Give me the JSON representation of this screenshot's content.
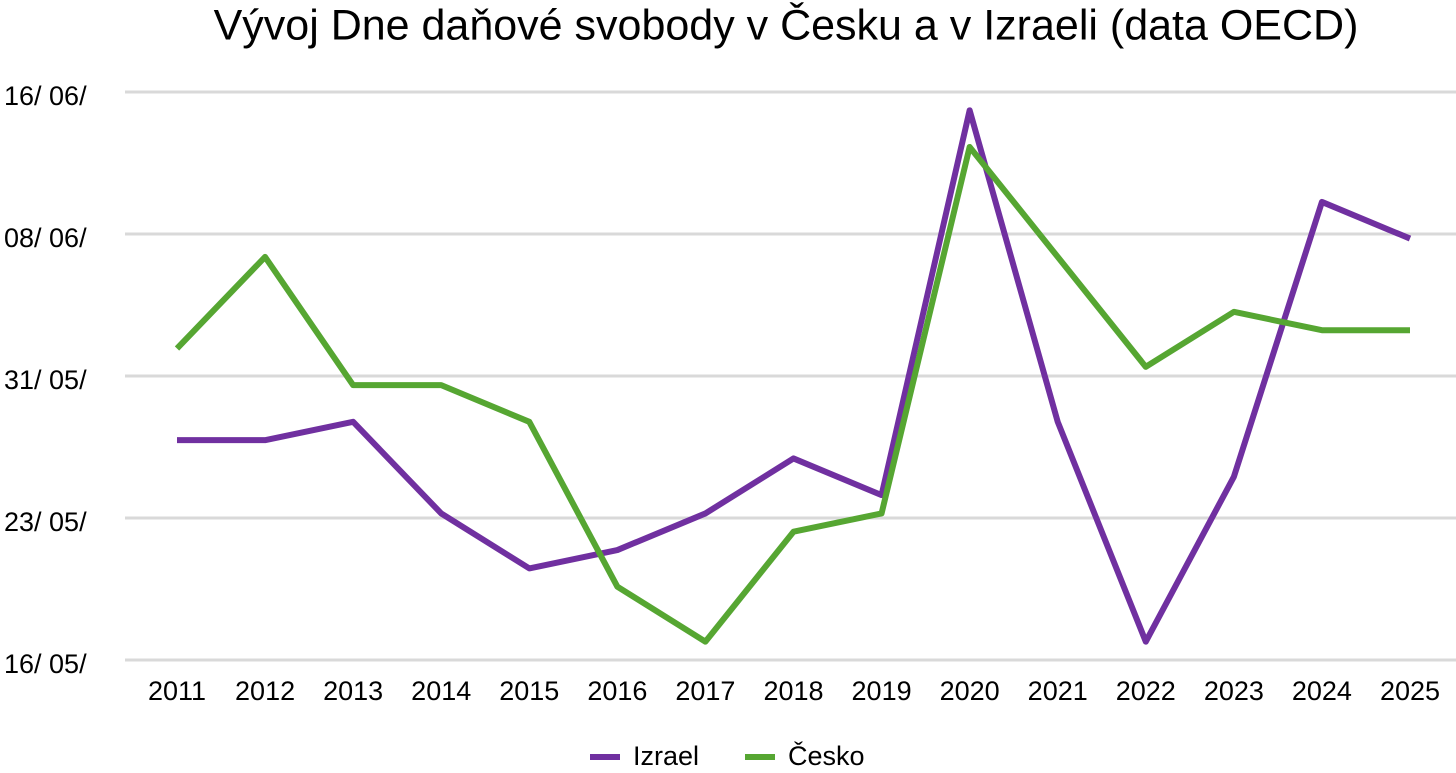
{
  "chart_data": {
    "type": "line",
    "title": "Vývoj Dne daňové svobody v Česku a v Izraeli (data OECD)",
    "categories": [
      "2011",
      "2012",
      "2013",
      "2014",
      "2015",
      "2016",
      "2017",
      "2018",
      "2019",
      "2020",
      "2021",
      "2022",
      "2023",
      "2024",
      "2025"
    ],
    "series": [
      {
        "name": "Izrael",
        "color": "#7030a0",
        "values": [
          28,
          28,
          29,
          24,
          21,
          22,
          24,
          27,
          25,
          46,
          29,
          17,
          26,
          41,
          39
        ]
      },
      {
        "name": "Česko",
        "color": "#56a632",
        "values": [
          33,
          38,
          31,
          31,
          29,
          20,
          17,
          23,
          24,
          44,
          38,
          32,
          35,
          34,
          34
        ]
      }
    ],
    "ylim": [
      16,
      47
    ],
    "yticks": [
      {
        "value": 16,
        "label": "16/ 05/"
      },
      {
        "value": 23.75,
        "label": "23/ 05/"
      },
      {
        "value": 31.5,
        "label": "31/ 05/"
      },
      {
        "value": 39.25,
        "label": "08/ 06/"
      },
      {
        "value": 47,
        "label": "16/ 06/"
      }
    ],
    "grid": true,
    "legend": "bottom"
  }
}
